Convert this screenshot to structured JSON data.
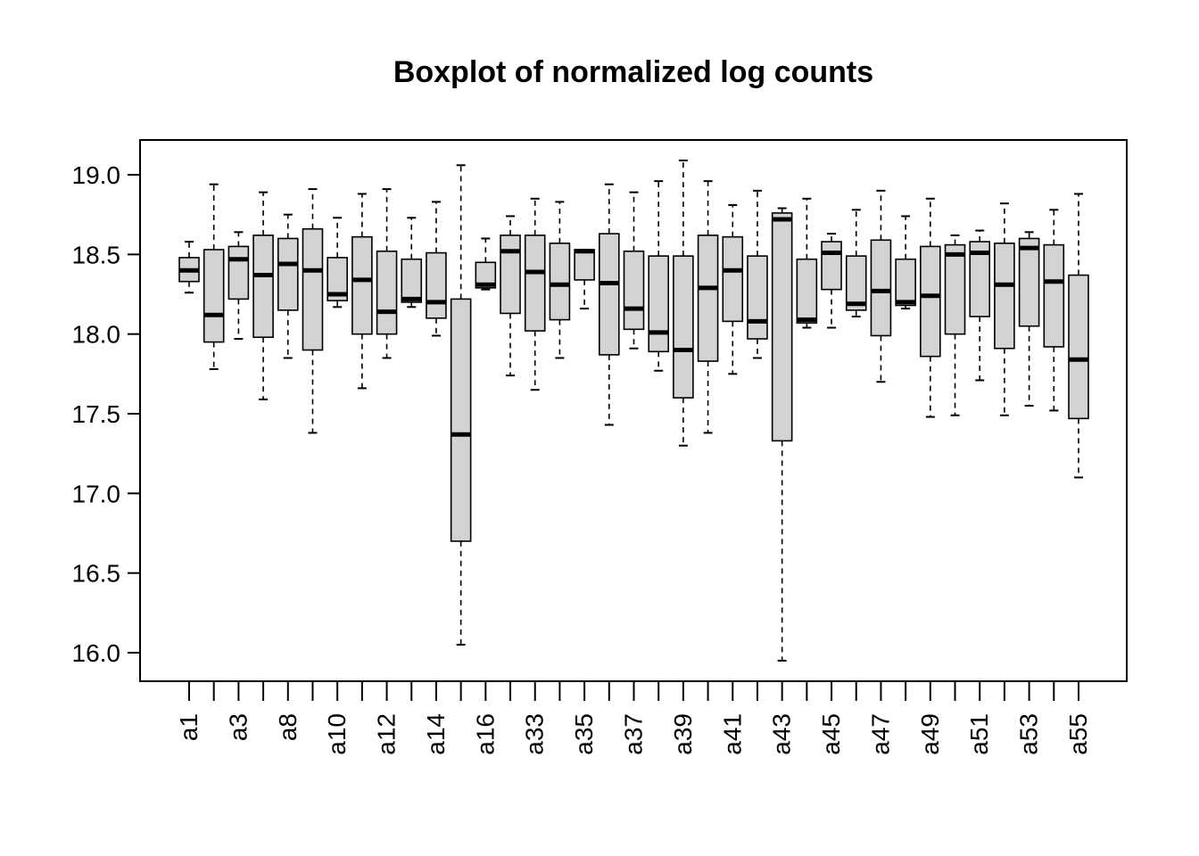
{
  "chart_data": {
    "type": "boxplot",
    "title": "Boxplot of normalized log counts",
    "xlabel": "",
    "ylabel": "",
    "ylim": [
      15.85,
      19.2
    ],
    "yticks": [
      16.0,
      16.5,
      17.0,
      17.5,
      18.0,
      18.5,
      19.0
    ],
    "ytick_labels": [
      "16.0",
      "16.5",
      "17.0",
      "17.5",
      "18.0",
      "18.5",
      "19.0"
    ],
    "xtick_labels": [
      "a1",
      "a3",
      "a8",
      "a10",
      "a12",
      "a14",
      "a16",
      "a33",
      "a35",
      "a37",
      "a39",
      "a41",
      "a43",
      "a45",
      "a47",
      "a49",
      "a51",
      "a53",
      "a55"
    ],
    "fill_color": "#d3d3d3",
    "grid": false,
    "boxes": [
      {
        "whisker_low": 18.26,
        "q1": 18.33,
        "median": 18.4,
        "q3": 18.48,
        "whisker_high": 18.58
      },
      {
        "whisker_low": 17.78,
        "q1": 17.95,
        "median": 18.12,
        "q3": 18.53,
        "whisker_high": 18.94
      },
      {
        "whisker_low": 17.97,
        "q1": 18.22,
        "median": 18.47,
        "q3": 18.55,
        "whisker_high": 18.64
      },
      {
        "whisker_low": 17.59,
        "q1": 17.98,
        "median": 18.37,
        "q3": 18.62,
        "whisker_high": 18.89
      },
      {
        "whisker_low": 17.85,
        "q1": 18.15,
        "median": 18.44,
        "q3": 18.6,
        "whisker_high": 18.75
      },
      {
        "whisker_low": 17.38,
        "q1": 17.9,
        "median": 18.4,
        "q3": 18.66,
        "whisker_high": 18.91
      },
      {
        "whisker_low": 18.17,
        "q1": 18.21,
        "median": 18.25,
        "q3": 18.48,
        "whisker_high": 18.73
      },
      {
        "whisker_low": 17.66,
        "q1": 18.0,
        "median": 18.34,
        "q3": 18.61,
        "whisker_high": 18.88
      },
      {
        "whisker_low": 17.85,
        "q1": 18.0,
        "median": 18.14,
        "q3": 18.52,
        "whisker_high": 18.91
      },
      {
        "whisker_low": 18.17,
        "q1": 18.2,
        "median": 18.22,
        "q3": 18.47,
        "whisker_high": 18.73
      },
      {
        "whisker_low": 17.99,
        "q1": 18.1,
        "median": 18.2,
        "q3": 18.51,
        "whisker_high": 18.83
      },
      {
        "whisker_low": 16.05,
        "q1": 16.7,
        "median": 17.37,
        "q3": 18.22,
        "whisker_high": 19.06
      },
      {
        "whisker_low": 18.28,
        "q1": 18.29,
        "median": 18.31,
        "q3": 18.45,
        "whisker_high": 18.6
      },
      {
        "whisker_low": 17.74,
        "q1": 18.13,
        "median": 18.52,
        "q3": 18.62,
        "whisker_high": 18.74
      },
      {
        "whisker_low": 17.65,
        "q1": 18.02,
        "median": 18.39,
        "q3": 18.62,
        "whisker_high": 18.85
      },
      {
        "whisker_low": 17.85,
        "q1": 18.09,
        "median": 18.31,
        "q3": 18.57,
        "whisker_high": 18.83
      },
      {
        "whisker_low": 18.16,
        "q1": 18.34,
        "median": 18.52,
        "q3": 18.53,
        "whisker_high": 18.53
      },
      {
        "whisker_low": 17.43,
        "q1": 17.87,
        "median": 18.32,
        "q3": 18.63,
        "whisker_high": 18.94
      },
      {
        "whisker_low": 17.91,
        "q1": 18.03,
        "median": 18.16,
        "q3": 18.52,
        "whisker_high": 18.89
      },
      {
        "whisker_low": 17.77,
        "q1": 17.89,
        "median": 18.01,
        "q3": 18.49,
        "whisker_high": 18.96
      },
      {
        "whisker_low": 17.3,
        "q1": 17.6,
        "median": 17.9,
        "q3": 18.49,
        "whisker_high": 19.09
      },
      {
        "whisker_low": 17.38,
        "q1": 17.83,
        "median": 18.29,
        "q3": 18.62,
        "whisker_high": 18.96
      },
      {
        "whisker_low": 17.75,
        "q1": 18.08,
        "median": 18.4,
        "q3": 18.61,
        "whisker_high": 18.81
      },
      {
        "whisker_low": 17.85,
        "q1": 17.97,
        "median": 18.08,
        "q3": 18.49,
        "whisker_high": 18.9
      },
      {
        "whisker_low": 15.95,
        "q1": 17.33,
        "median": 18.72,
        "q3": 18.76,
        "whisker_high": 18.79
      },
      {
        "whisker_low": 18.04,
        "q1": 18.07,
        "median": 18.09,
        "q3": 18.47,
        "whisker_high": 18.85
      },
      {
        "whisker_low": 18.04,
        "q1": 18.28,
        "median": 18.51,
        "q3": 18.58,
        "whisker_high": 18.63
      },
      {
        "whisker_low": 18.11,
        "q1": 18.15,
        "median": 18.19,
        "q3": 18.49,
        "whisker_high": 18.78
      },
      {
        "whisker_low": 17.7,
        "q1": 17.99,
        "median": 18.27,
        "q3": 18.59,
        "whisker_high": 18.9
      },
      {
        "whisker_low": 18.16,
        "q1": 18.18,
        "median": 18.2,
        "q3": 18.47,
        "whisker_high": 18.74
      },
      {
        "whisker_low": 17.48,
        "q1": 17.86,
        "median": 18.24,
        "q3": 18.55,
        "whisker_high": 18.85
      },
      {
        "whisker_low": 17.49,
        "q1": 18.0,
        "median": 18.5,
        "q3": 18.56,
        "whisker_high": 18.62
      },
      {
        "whisker_low": 17.71,
        "q1": 18.11,
        "median": 18.51,
        "q3": 18.58,
        "whisker_high": 18.65
      },
      {
        "whisker_low": 17.49,
        "q1": 17.91,
        "median": 18.31,
        "q3": 18.57,
        "whisker_high": 18.82
      },
      {
        "whisker_low": 17.55,
        "q1": 18.05,
        "median": 18.54,
        "q3": 18.6,
        "whisker_high": 18.64
      },
      {
        "whisker_low": 17.52,
        "q1": 17.92,
        "median": 18.33,
        "q3": 18.56,
        "whisker_high": 18.78
      },
      {
        "whisker_low": 17.1,
        "q1": 17.47,
        "median": 17.84,
        "q3": 18.37,
        "whisker_high": 18.88
      }
    ]
  }
}
